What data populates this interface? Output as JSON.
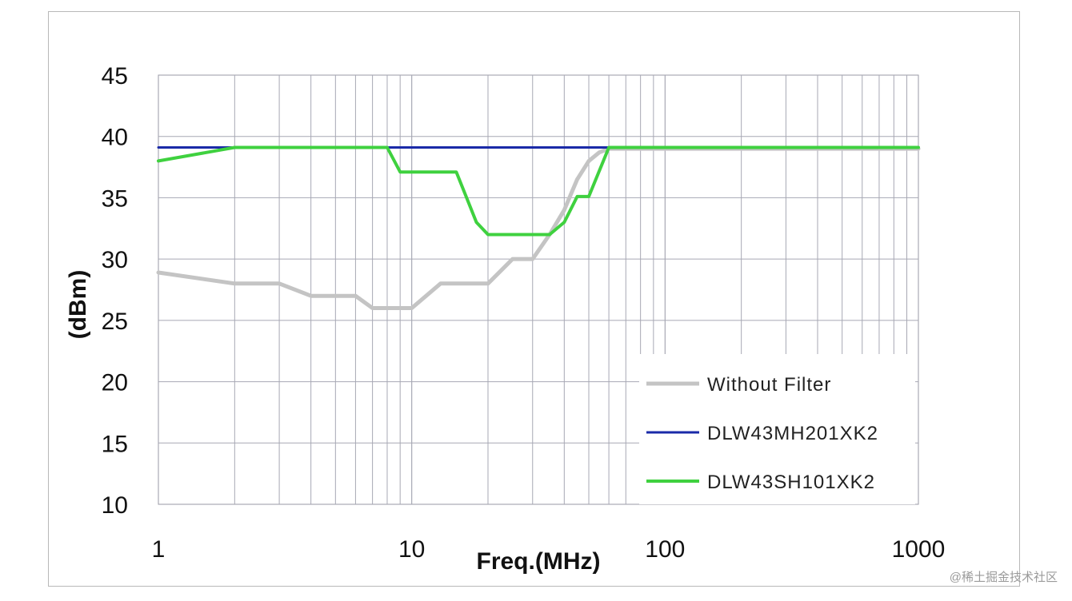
{
  "chart_data": {
    "type": "line",
    "xscale": "log",
    "xlim": [
      1,
      1000
    ],
    "ylim": [
      10,
      45
    ],
    "grid": true,
    "legend_position": "bottom-right",
    "xlabel": "Freq.(MHz)",
    "ylabel": "(dBm)",
    "x_ticks": [
      "1",
      "10",
      "100",
      "1000"
    ],
    "y_ticks": [
      "45",
      "40",
      "35",
      "30",
      "25",
      "20",
      "15",
      "10"
    ],
    "series": [
      {
        "name": "Without Filter",
        "color": "#c4c4c4",
        "x": [
          1,
          2,
          3,
          4,
          6,
          7,
          8,
          10,
          13,
          20,
          25,
          30,
          35,
          40,
          45,
          50,
          55,
          60,
          1000
        ],
        "y": [
          28.9,
          28,
          28,
          27,
          27,
          26,
          26,
          26,
          28,
          28,
          30,
          30,
          32,
          34,
          36.5,
          38,
          38.7,
          39,
          39
        ]
      },
      {
        "name": "DLW43MH201XK2",
        "color": "#1a2aa8",
        "x": [
          1,
          1000
        ],
        "y": [
          39.1,
          39.1
        ]
      },
      {
        "name": "DLW43SH101XK2",
        "color": "#3fd13f",
        "x": [
          1,
          2,
          8,
          9,
          15,
          18,
          20,
          25,
          30,
          35,
          40,
          45,
          50,
          60,
          1000
        ],
        "y": [
          38,
          39.1,
          39.1,
          37.1,
          37.1,
          33,
          32,
          32,
          32,
          32,
          33,
          35.1,
          35.1,
          39.1,
          39.1
        ]
      }
    ]
  },
  "watermark": "@稀土掘金技术社区"
}
